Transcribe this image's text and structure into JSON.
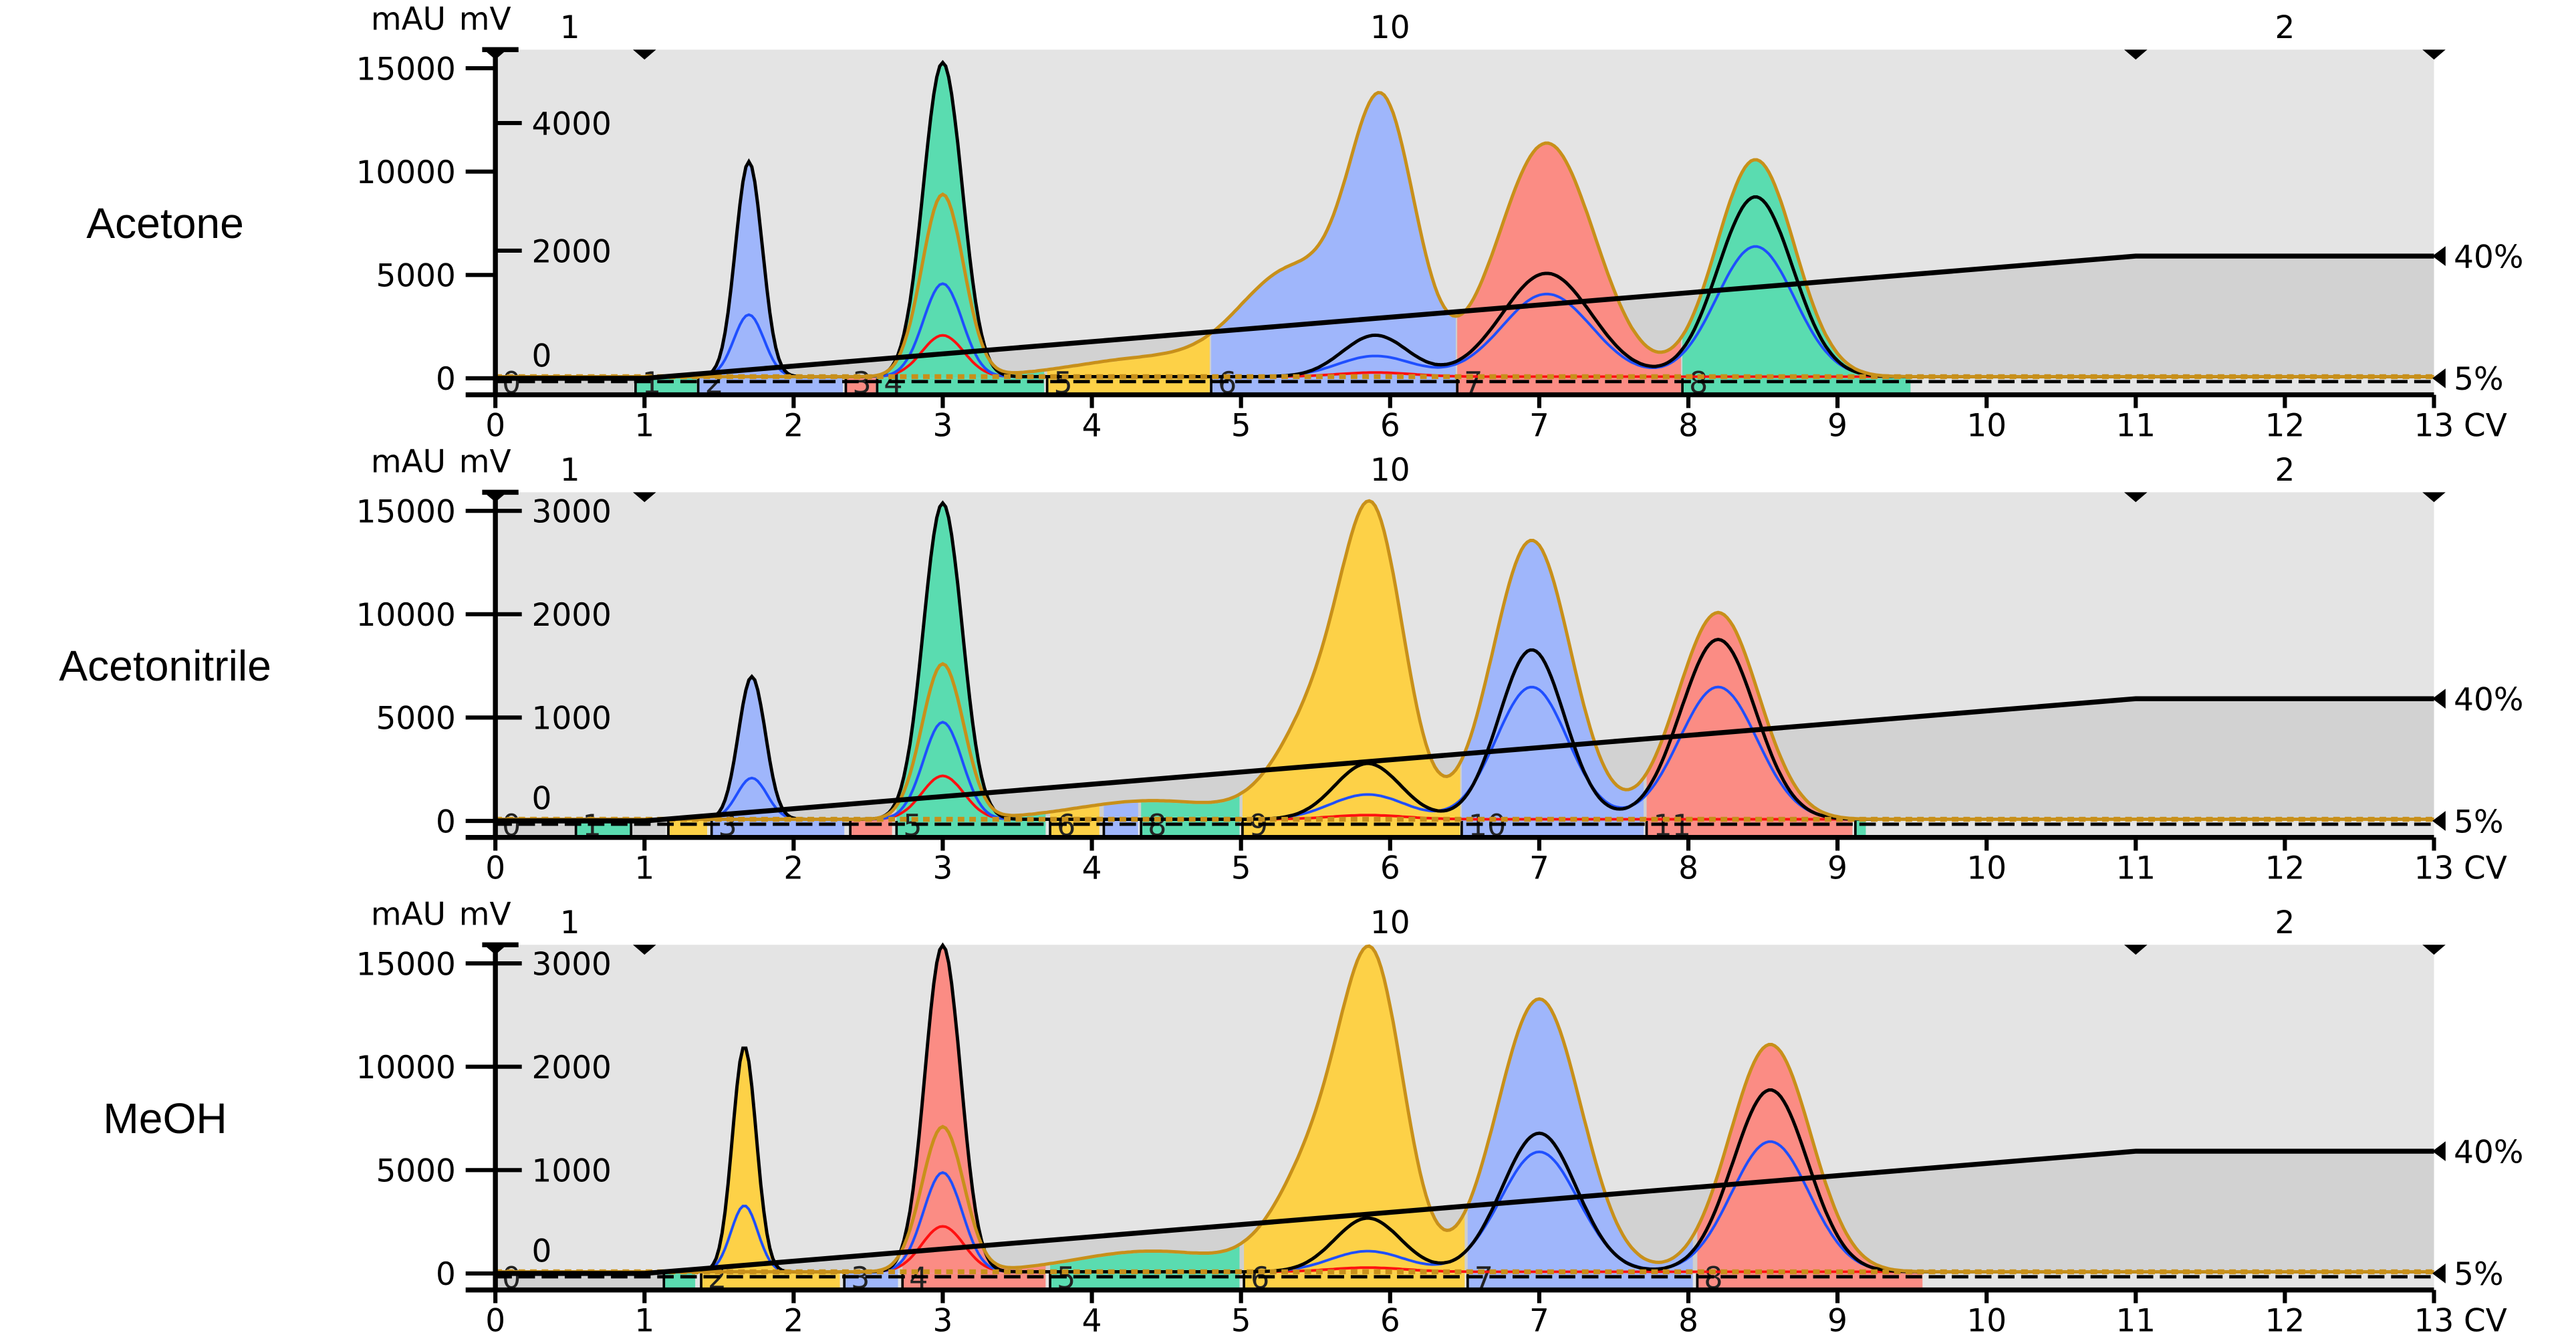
{
  "chart_data": [
    {
      "type": "area",
      "sample": "Acetone",
      "x_unit": "CV",
      "y_left_unit": "mAU",
      "y_right_unit": "mV",
      "xlim": [
        0,
        13
      ],
      "ylim_left": [
        0,
        15900
      ],
      "ylim_right": [
        0,
        5150
      ],
      "x_ticks": [
        "0",
        "1",
        "2",
        "3",
        "4",
        "5",
        "6",
        "7",
        "8",
        "9",
        "10",
        "11",
        "12",
        "13"
      ],
      "y_left_ticks": [
        "0",
        "5000",
        "10000",
        "15000"
      ],
      "y_right_ticks": [
        "0",
        "2000",
        "4000"
      ],
      "gradient": {
        "points": [
          [
            0,
            5
          ],
          [
            1,
            5
          ],
          [
            11,
            40
          ],
          [
            13,
            40
          ]
        ],
        "label_high": "40%",
        "label_low": "5%"
      },
      "segment_labels": [
        {
          "label": "1",
          "cv": 0.5
        },
        {
          "label": "10",
          "cv": 6
        },
        {
          "label": "2",
          "cv": 12
        }
      ],
      "segment_markers_cv": [
        0,
        1,
        11,
        13
      ],
      "fractions": [
        {
          "label": "0",
          "start": 0,
          "end": 0.94,
          "color": "#d2d2d2"
        },
        {
          "label": "1",
          "start": 0.94,
          "end": 1.35,
          "color": "#5adcb0"
        },
        {
          "label": "2",
          "start": 1.36,
          "end": 2.33,
          "color": "#9fb6fb"
        },
        {
          "label": "3",
          "start": 2.35,
          "end": 2.55,
          "color": "#fb8c84"
        },
        {
          "label": "4",
          "start": 2.56,
          "end": 3.68,
          "color": "#5adcb0"
        },
        {
          "label": "5",
          "start": 3.7,
          "end": 4.79,
          "color": "#fdd147"
        },
        {
          "label": "6",
          "start": 4.8,
          "end": 6.44,
          "color": "#9fb6fb"
        },
        {
          "label": "7",
          "start": 6.45,
          "end": 7.95,
          "color": "#fb8c84"
        },
        {
          "label": "8",
          "start": 7.96,
          "end": 9.49,
          "color": "#5adcb0"
        }
      ],
      "series": [
        {
          "color": "#c8901a",
          "peaks": [
            [
              3.0,
              8800,
              0.14
            ],
            [
              5.35,
              5000,
              0.35
            ],
            [
              5.95,
              12500,
              0.22
            ],
            [
              7.05,
              11300,
              0.32
            ],
            [
              8.45,
              10500,
              0.26
            ],
            [
              4.4,
              900,
              0.5
            ]
          ]
        },
        {
          "color": "#000000",
          "peaks": [
            [
              1.7,
              10400,
              0.09
            ],
            [
              3.0,
              15200,
              0.13
            ],
            [
              5.9,
              2000,
              0.22
            ],
            [
              7.05,
              5000,
              0.3
            ],
            [
              8.45,
              8700,
              0.25
            ]
          ]
        },
        {
          "color": "#1f4fff",
          "peaks": [
            [
              1.7,
              3000,
              0.1
            ],
            [
              3.0,
              4500,
              0.13
            ],
            [
              5.9,
              1000,
              0.25
            ],
            [
              7.05,
              4000,
              0.3
            ],
            [
              8.45,
              6300,
              0.26
            ]
          ]
        },
        {
          "color": "#ff1010",
          "peaks": [
            [
              3.0,
              2000,
              0.14
            ],
            [
              5.9,
              200,
              0.25
            ]
          ]
        }
      ]
    },
    {
      "type": "area",
      "sample": "Acetonitrile",
      "x_unit": "CV",
      "y_left_unit": "mAU",
      "y_right_unit": "mV",
      "xlim": [
        0,
        13
      ],
      "ylim_left": [
        0,
        15900
      ],
      "ylim_right": [
        0,
        3180
      ],
      "x_ticks": [
        "0",
        "1",
        "2",
        "3",
        "4",
        "5",
        "6",
        "7",
        "8",
        "9",
        "10",
        "11",
        "12",
        "13"
      ],
      "y_left_ticks": [
        "0",
        "5000",
        "10000",
        "15000"
      ],
      "y_right_ticks": [
        "0",
        "1000",
        "2000",
        "3000"
      ],
      "gradient": {
        "points": [
          [
            0,
            5
          ],
          [
            1,
            5
          ],
          [
            11,
            40
          ],
          [
            13,
            40
          ]
        ],
        "label_high": "40%",
        "label_low": "5%"
      },
      "segment_labels": [
        {
          "label": "1",
          "cv": 0.5
        },
        {
          "label": "10",
          "cv": 6
        },
        {
          "label": "2",
          "cv": 12
        }
      ],
      "segment_markers_cv": [
        0,
        1,
        11,
        13
      ],
      "fractions": [
        {
          "label": "0",
          "start": 0,
          "end": 0.54,
          "color": "#d2d2d2"
        },
        {
          "label": "1",
          "start": 0.54,
          "end": 0.91,
          "color": "#5adcb0"
        },
        {
          "label": "",
          "start": 0.91,
          "end": 1.14,
          "color": "#d2d2d2"
        },
        {
          "label": "",
          "start": 1.16,
          "end": 1.42,
          "color": "#fdd147"
        },
        {
          "label": "3",
          "start": 1.45,
          "end": 2.34,
          "color": "#9fb6fb"
        },
        {
          "label": "",
          "start": 2.38,
          "end": 2.66,
          "color": "#fb8c84"
        },
        {
          "label": "5",
          "start": 2.69,
          "end": 3.69,
          "color": "#5adcb0"
        },
        {
          "label": "6",
          "start": 3.72,
          "end": 4.05,
          "color": "#fdd147"
        },
        {
          "label": "",
          "start": 4.08,
          "end": 4.31,
          "color": "#9fb6fb"
        },
        {
          "label": "8",
          "start": 4.33,
          "end": 4.99,
          "color": "#5adcb0"
        },
        {
          "label": "9",
          "start": 5.01,
          "end": 6.47,
          "color": "#fdd147"
        },
        {
          "label": "10",
          "start": 6.48,
          "end": 7.7,
          "color": "#9fb6fb"
        },
        {
          "label": "11",
          "start": 7.72,
          "end": 9.1,
          "color": "#fb8c84"
        },
        {
          "label": "",
          "start": 9.12,
          "end": 9.19,
          "color": "#5adcb0"
        }
      ],
      "series": [
        {
          "color": "#c8901a",
          "peaks": [
            [
              3.0,
              7500,
              0.14
            ],
            [
              5.6,
              6000,
              0.3
            ],
            [
              5.9,
              11500,
              0.2
            ],
            [
              6.95,
              13500,
              0.26
            ],
            [
              8.2,
              10000,
              0.27
            ],
            [
              4.4,
              900,
              0.5
            ]
          ]
        },
        {
          "color": "#000000",
          "peaks": [
            [
              1.72,
              6900,
              0.09
            ],
            [
              3.0,
              15300,
              0.13
            ],
            [
              5.85,
              2700,
              0.22
            ],
            [
              6.95,
              8200,
              0.22
            ],
            [
              8.2,
              8700,
              0.25
            ]
          ]
        },
        {
          "color": "#1f4fff",
          "peaks": [
            [
              1.72,
              2000,
              0.1
            ],
            [
              3.0,
              4700,
              0.13
            ],
            [
              5.85,
              1200,
              0.25
            ],
            [
              6.95,
              6400,
              0.24
            ],
            [
              8.2,
              6400,
              0.26
            ]
          ]
        },
        {
          "color": "#ff1010",
          "peaks": [
            [
              3.0,
              2100,
              0.14
            ],
            [
              5.85,
              200,
              0.25
            ]
          ]
        }
      ]
    },
    {
      "type": "area",
      "sample": "MeOH",
      "x_unit": "CV",
      "y_left_unit": "mAU",
      "y_right_unit": "mV",
      "xlim": [
        0,
        13
      ],
      "ylim_left": [
        0,
        15900
      ],
      "ylim_right": [
        0,
        3180
      ],
      "x_ticks": [
        "0",
        "1",
        "2",
        "3",
        "4",
        "5",
        "6",
        "7",
        "8",
        "9",
        "10",
        "11",
        "12",
        "13"
      ],
      "y_left_ticks": [
        "0",
        "5000",
        "10000",
        "15000"
      ],
      "y_right_ticks": [
        "0",
        "1000",
        "2000",
        "3000"
      ],
      "gradient": {
        "points": [
          [
            0,
            5
          ],
          [
            1,
            5
          ],
          [
            11,
            40
          ],
          [
            13,
            40
          ]
        ],
        "label_high": "40%",
        "label_low": "5%"
      },
      "segment_labels": [
        {
          "label": "1",
          "cv": 0.5
        },
        {
          "label": "10",
          "cv": 6
        },
        {
          "label": "2",
          "cv": 12
        }
      ],
      "segment_markers_cv": [
        0,
        1,
        11,
        13
      ],
      "fractions": [
        {
          "label": "0",
          "start": 0,
          "end": 1.13,
          "color": "#d2d2d2"
        },
        {
          "label": "",
          "start": 1.13,
          "end": 1.34,
          "color": "#5adcb0"
        },
        {
          "label": "2",
          "start": 1.38,
          "end": 2.31,
          "color": "#fdd147"
        },
        {
          "label": "3",
          "start": 2.34,
          "end": 2.7,
          "color": "#9fb6fb"
        },
        {
          "label": "4",
          "start": 2.73,
          "end": 3.69,
          "color": "#fb8c84"
        },
        {
          "label": "5",
          "start": 3.72,
          "end": 4.99,
          "color": "#5adcb0"
        },
        {
          "label": "6",
          "start": 5.02,
          "end": 6.5,
          "color": "#fdd147"
        },
        {
          "label": "7",
          "start": 6.52,
          "end": 8.03,
          "color": "#9fb6fb"
        },
        {
          "label": "8",
          "start": 8.06,
          "end": 9.57,
          "color": "#fb8c84"
        }
      ],
      "series": [
        {
          "color": "#c8901a",
          "peaks": [
            [
              3.0,
              7000,
              0.14
            ],
            [
              5.6,
              6500,
              0.3
            ],
            [
              5.9,
              11500,
              0.2
            ],
            [
              7.0,
              13200,
              0.28
            ],
            [
              8.55,
              11000,
              0.27
            ],
            [
              4.4,
              1000,
              0.5
            ]
          ]
        },
        {
          "color": "#000000",
          "peaks": [
            [
              1.67,
              10900,
              0.08
            ],
            [
              3.0,
              15800,
              0.12
            ],
            [
              5.85,
              2600,
              0.22
            ],
            [
              7.0,
              6700,
              0.25
            ],
            [
              8.55,
              8800,
              0.25
            ]
          ]
        },
        {
          "color": "#1f4fff",
          "peaks": [
            [
              1.67,
              3200,
              0.09
            ],
            [
              3.0,
              4800,
              0.13
            ],
            [
              5.85,
              1000,
              0.25
            ],
            [
              7.0,
              5800,
              0.26
            ],
            [
              8.55,
              6300,
              0.26
            ]
          ]
        },
        {
          "color": "#ff1010",
          "peaks": [
            [
              3.0,
              2200,
              0.14
            ],
            [
              5.85,
              200,
              0.25
            ]
          ]
        }
      ]
    }
  ]
}
